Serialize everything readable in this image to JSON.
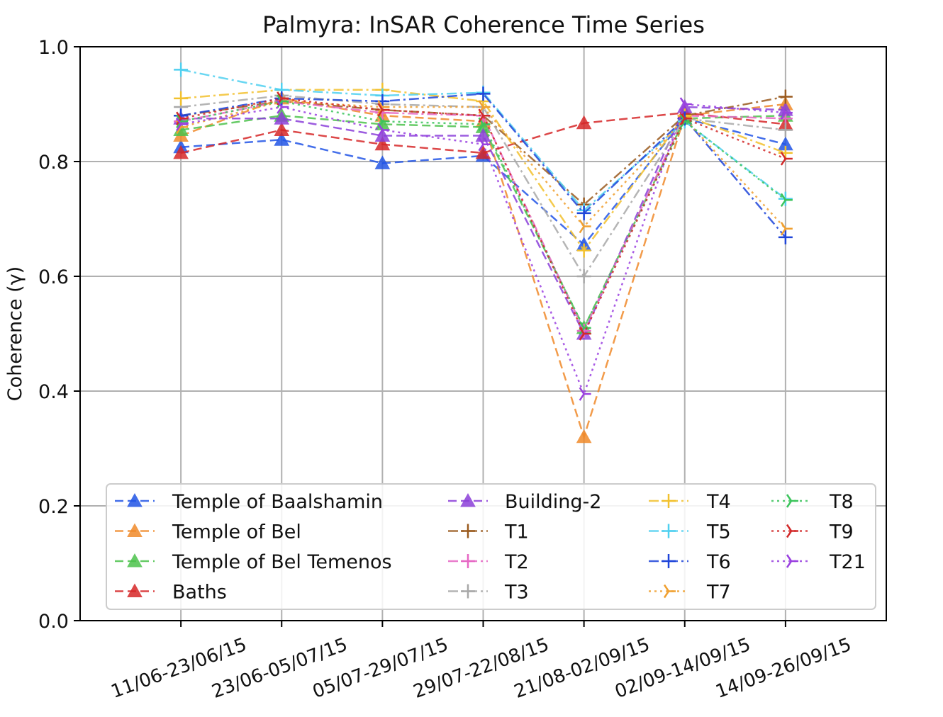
{
  "chart_data": {
    "type": "line",
    "title": "Palmyra: InSAR Coherence Time Series",
    "y_label": "Coherence (γ)",
    "categories": [
      "11/06-23/06/15",
      "23/06-05/07/15",
      "05/07-29/07/15",
      "29/07-22/08/15",
      "21/08-02/09/15",
      "02/09-14/09/15",
      "14/09-26/09/15"
    ],
    "ylim": [
      0,
      1
    ],
    "yticks": [
      {
        "value": 0,
        "label": "0.0"
      },
      0.2,
      0.4,
      0.6,
      0.8,
      {
        "value": 1,
        "label": "1.0"
      }
    ],
    "grid": true,
    "legend": "lower center",
    "series": [
      {
        "name": "Temple of Baalshamin",
        "color": "#2255e6",
        "linestyle": "dashed",
        "marker": "triangle",
        "values": [
          0.825,
          0.838,
          0.797,
          0.81,
          0.655,
          0.875,
          0.83
        ]
      },
      {
        "name": "Temple of Bel",
        "color": "#f08a2a",
        "linestyle": "dashed",
        "marker": "triangle",
        "values": [
          0.845,
          0.91,
          0.88,
          0.87,
          0.32,
          0.88,
          0.9
        ]
      },
      {
        "name": "Temple of Bel Temenos",
        "color": "#4cc24c",
        "linestyle": "dashed",
        "marker": "triangle",
        "values": [
          0.855,
          0.88,
          0.865,
          0.86,
          0.51,
          0.875,
          0.88
        ]
      },
      {
        "name": "Baths",
        "color": "#d62728",
        "linestyle": "dashed",
        "marker": "triangle",
        "values": [
          0.815,
          0.855,
          0.83,
          0.815,
          0.867,
          0.885,
          0.865
        ]
      },
      {
        "name": "Building-2",
        "color": "#8b3fd9",
        "linestyle": "dashed",
        "marker": "triangle",
        "values": [
          0.875,
          0.875,
          0.845,
          0.845,
          0.5,
          0.895,
          0.89
        ]
      },
      {
        "name": "T1",
        "color": "#9a5a1e",
        "linestyle": "dashdot",
        "marker": "plus",
        "values": [
          0.88,
          0.905,
          0.89,
          0.88,
          0.725,
          0.88,
          0.913
        ]
      },
      {
        "name": "T2",
        "color": "#e667c4",
        "linestyle": "dashdot",
        "marker": "plus",
        "values": [
          0.87,
          0.905,
          0.885,
          0.88,
          0.505,
          0.88,
          0.875
        ]
      },
      {
        "name": "T3",
        "color": "#a8a8a8",
        "linestyle": "dashdot",
        "marker": "plus",
        "values": [
          0.895,
          0.915,
          0.9,
          0.895,
          0.6,
          0.875,
          0.855
        ]
      },
      {
        "name": "T4",
        "color": "#f2c12e",
        "linestyle": "dashdot",
        "marker": "plus",
        "values": [
          0.91,
          0.925,
          0.925,
          0.905,
          0.645,
          0.88,
          0.815
        ]
      },
      {
        "name": "T5",
        "color": "#4fd0f0",
        "linestyle": "dashdot",
        "marker": "plus",
        "values": [
          0.96,
          0.925,
          0.915,
          0.92,
          0.715,
          0.87,
          0.735
        ]
      },
      {
        "name": "T6",
        "color": "#1f45d9",
        "linestyle": "dashdot",
        "marker": "plus",
        "values": [
          0.88,
          0.91,
          0.905,
          0.918,
          0.71,
          0.875,
          0.668
        ]
      },
      {
        "name": "T7",
        "color": "#f0a030",
        "linestyle": "dotted",
        "marker": "tri_right",
        "values": [
          0.86,
          0.905,
          0.895,
          0.895,
          0.687,
          0.875,
          0.683
        ]
      },
      {
        "name": "T8",
        "color": "#3cc45c",
        "linestyle": "dotted",
        "marker": "tri_right",
        "values": [
          0.87,
          0.905,
          0.87,
          0.865,
          0.51,
          0.87,
          0.733
        ]
      },
      {
        "name": "T9",
        "color": "#d22a2a",
        "linestyle": "dotted",
        "marker": "tri_right",
        "values": [
          0.875,
          0.91,
          0.89,
          0.88,
          0.5,
          0.875,
          0.805
        ]
      },
      {
        "name": "T21",
        "color": "#9a40e0",
        "linestyle": "dotted",
        "marker": "tri_right",
        "values": [
          0.865,
          0.895,
          0.855,
          0.83,
          0.395,
          0.9,
          0.885
        ]
      }
    ]
  }
}
